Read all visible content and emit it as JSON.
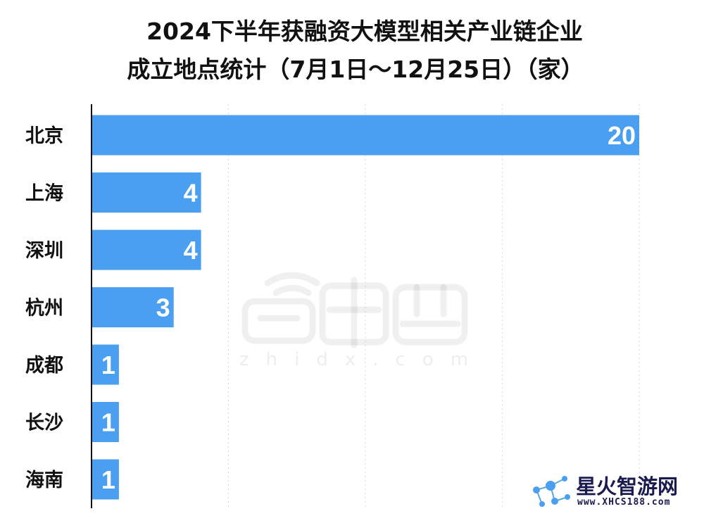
{
  "chart_data": {
    "type": "bar",
    "orientation": "horizontal",
    "title": "2024下半年获融资大模型相关产业链企业",
    "subtitle": "成立地点统计（7月1日～12月25日）（家）",
    "categories": [
      "北京",
      "上海",
      "深圳",
      "杭州",
      "成都",
      "长沙",
      "海南"
    ],
    "values": [
      20,
      4,
      4,
      3,
      1,
      1,
      1
    ],
    "xlim": [
      0,
      20
    ],
    "xgrid_lines": [
      5,
      10,
      15,
      20
    ],
    "grid": "vertical dotted",
    "xlabel": "",
    "ylabel": "",
    "bar_color": "#4a9ff0",
    "axis_color": "#111111",
    "grid_color": "#d9d9d9",
    "legend": "none"
  },
  "watermark": {
    "text": "zhidx.com"
  },
  "badge": {
    "name": "星火智游网",
    "url": "www.XHCS188.com"
  }
}
